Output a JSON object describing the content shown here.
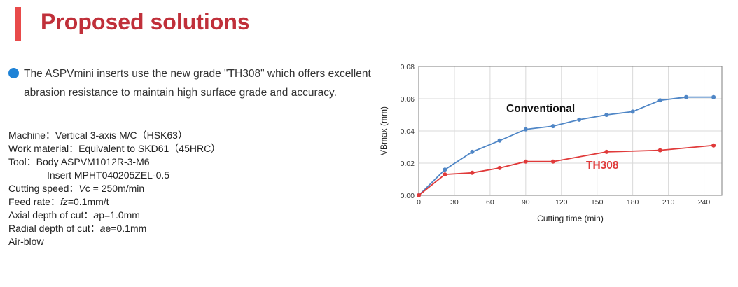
{
  "title": "Proposed solutions",
  "intro": "The ASPVmini inserts use the new grade \"TH308\" which offers excellent abrasion resistance to maintain high surface grade and accuracy.",
  "conditions": {
    "machine": "Machine：Vertical 3-axis M/C（HSK63）",
    "work_material": "Work material：Equivalent to SKD61（45HRC）",
    "tool_body": "Tool：Body ASPVM1012R-3-M6",
    "tool_insert": "Insert MPHT040205ZEL-0.5",
    "cutting_speed_prefix": "Cutting speed：",
    "cutting_speed_sym": "V",
    "cutting_speed_rest": "c = 250m/min",
    "feed_prefix": "Feed rate：",
    "feed_sym": "fz",
    "feed_rest": "=0.1mm/t",
    "axial_prefix": "Axial depth of cut：",
    "axial_sym": "a",
    "axial_rest": "p=1.0mm",
    "radial_prefix": "Radial depth of cut：",
    "radial_sym": "a",
    "radial_rest": "e=0.1mm",
    "air": "Air-blow"
  },
  "colors": {
    "accent_bar": "#e84a4a",
    "title": "#c0303a",
    "bullet": "#1e82d6"
  },
  "chart_data": {
    "type": "line",
    "xlabel": "Cutting time (min)",
    "ylabel": "VBmax (mm)",
    "xlim": [
      0,
      255
    ],
    "ylim": [
      0,
      0.08
    ],
    "xticks": [
      "0",
      "30",
      "60",
      "90",
      "120",
      "150",
      "180",
      "210",
      "240"
    ],
    "yticks": [
      "0.00",
      "0.02",
      "0.04",
      "0.06",
      "0.08"
    ],
    "grid": true,
    "series": [
      {
        "name": "Conventional",
        "color": "#4f86c6",
        "label_color": "#111111",
        "x": [
          0,
          22,
          45,
          68,
          90,
          113,
          135,
          158,
          180,
          203,
          225,
          248
        ],
        "y": [
          0,
          0.016,
          0.027,
          0.034,
          0.041,
          0.043,
          0.047,
          0.05,
          0.052,
          0.059,
          0.061,
          0.061
        ]
      },
      {
        "name": "TH308",
        "color": "#e03a3a",
        "label_color": "#e03a3a",
        "x": [
          0,
          22,
          45,
          68,
          90,
          113,
          158,
          203,
          248
        ],
        "y": [
          0,
          0.013,
          0.014,
          0.017,
          0.021,
          0.021,
          0.027,
          0.028,
          0.031
        ]
      }
    ]
  }
}
